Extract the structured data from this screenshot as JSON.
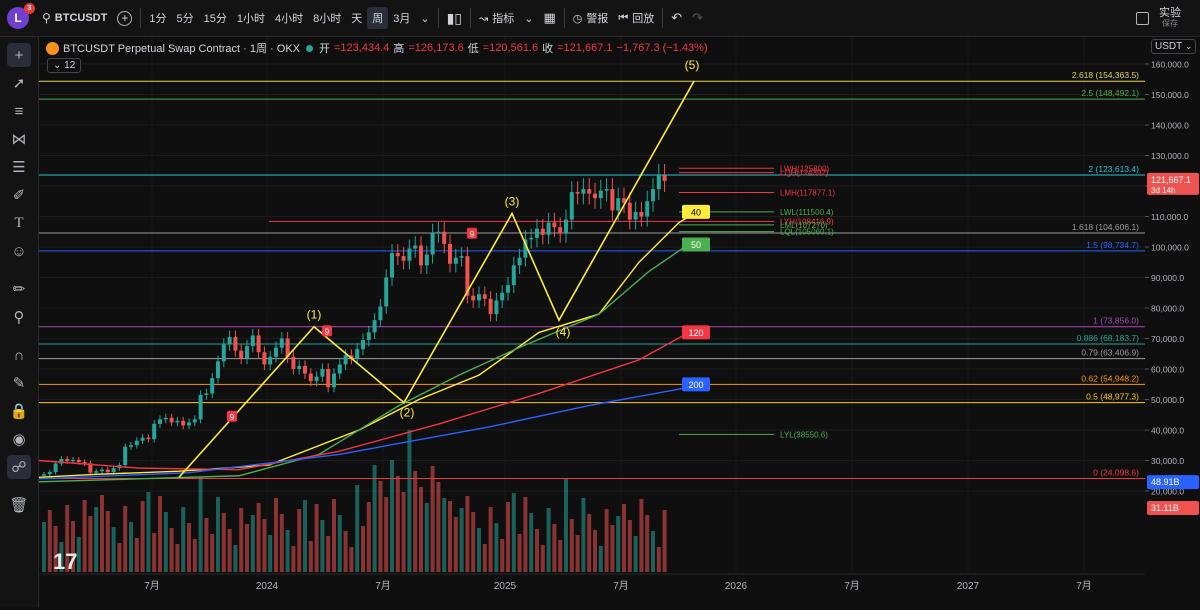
{
  "topbar": {
    "avatar_letter": "L",
    "notif_count": "3",
    "symbol": "BTCUSDT",
    "timeframes": [
      "1分",
      "5分",
      "15分",
      "1小时",
      "4小时",
      "8小时",
      "天",
      "周",
      "3月"
    ],
    "active_timeframe": "周",
    "indicators_label": "指标",
    "alert_label": "警报",
    "replay_label": "回放",
    "trade_label": "实验",
    "save_label": "保存"
  },
  "legend": {
    "title": "BTCUSDT Perpetual Swap Contract · 1周 · OKX",
    "open_label": "开",
    "open": "=123,434.4",
    "high_label": "高",
    "high": "=126,173.6",
    "low_label": "低",
    "low": "=120,561.6",
    "close_label": "收",
    "close": "=121,667.1",
    "change": "−1,767.3 (−1.43%)",
    "count_badge": "12"
  },
  "currency": "USDT",
  "price_axis": [
    "160,000.0",
    "150,000.0",
    "140,000.0",
    "130,000.0",
    "120,000.0",
    "110,000.0",
    "100,000.0",
    "90,000.0",
    "80,000.0",
    "70,000.0",
    "60,000.0",
    "50,000.0",
    "40,000.0",
    "30,000.0",
    "20,000.0"
  ],
  "price_tag": {
    "price": "121,667.1",
    "countdown": "3d 14h"
  },
  "volume_tags": [
    "48.91B",
    "31.11B"
  ],
  "time_axis": [
    "7月",
    "2024",
    "7月",
    "2025",
    "7月",
    "2026",
    "7月",
    "2027",
    "7月"
  ],
  "fib_levels": [
    {
      "label": "2.618 (154,363.5)",
      "price": 154363.5,
      "color": "#e5d55a"
    },
    {
      "label": "2.5 (148,492.1)",
      "price": 148492.1,
      "color": "#4caf50"
    },
    {
      "label": "2 (123,613.4)",
      "price": 123613.4,
      "color": "#26c6da"
    },
    {
      "label": "1.618 (104,606.1)",
      "price": 104606.1,
      "color": "#9e9e9e"
    },
    {
      "label": "1.5 (98,734.7)",
      "price": 98734.7,
      "color": "#2962ff"
    },
    {
      "label": "1 (73,856.0)",
      "price": 73856,
      "color": "#ab47bc"
    },
    {
      "label": "0.886 (68,183.7)",
      "price": 68183.7,
      "color": "#26a69a"
    },
    {
      "label": "0.79 (63,406.9)",
      "price": 63406.9,
      "color": "#9e9e9e"
    },
    {
      "label": "0.62 (54,948.2)",
      "price": 54948.2,
      "color": "#ff9800"
    },
    {
      "label": "0.5 (48,977.3)",
      "price": 48977.3,
      "color": "#ffca28"
    },
    {
      "label": "0 (24,098.6)",
      "price": 24098.6,
      "color": "#f23645"
    }
  ],
  "level_lines": [
    {
      "label": "LWH(125800)",
      "price": 125800,
      "color": "#f23645"
    },
    {
      "label": "LQH(124392)",
      "price": 124392,
      "color": "#f23645"
    },
    {
      "label": "LMH(117877.1)",
      "price": 117877.1,
      "color": "#f23645"
    },
    {
      "label": "LWL(111500.4)",
      "price": 111500.4,
      "color": "#4caf50"
    },
    {
      "label": "LYH(108416.9)",
      "price": 108416.9,
      "color": "#f23645"
    },
    {
      "label": "LML(107270)",
      "price": 107270,
      "color": "#4caf50"
    },
    {
      "label": "LQL(105060.1)",
      "price": 105060.1,
      "color": "#4caf50"
    },
    {
      "label": "LYL(38550.6)",
      "price": 38550.6,
      "color": "#4caf50"
    }
  ],
  "ma_badges": [
    {
      "label": "40",
      "color": "#ffeb3b",
      "text": "#000"
    },
    {
      "label": "50",
      "color": "#4caf50",
      "text": "#fff"
    },
    {
      "label": "120",
      "color": "#f23645",
      "text": "#fff"
    },
    {
      "label": "200",
      "color": "#2962ff",
      "text": "#fff"
    }
  ],
  "wave_labels": [
    "(1)",
    "(2)",
    "(3)",
    "(4)",
    "(5)"
  ],
  "td_label": "9",
  "watermark": "17"
}
